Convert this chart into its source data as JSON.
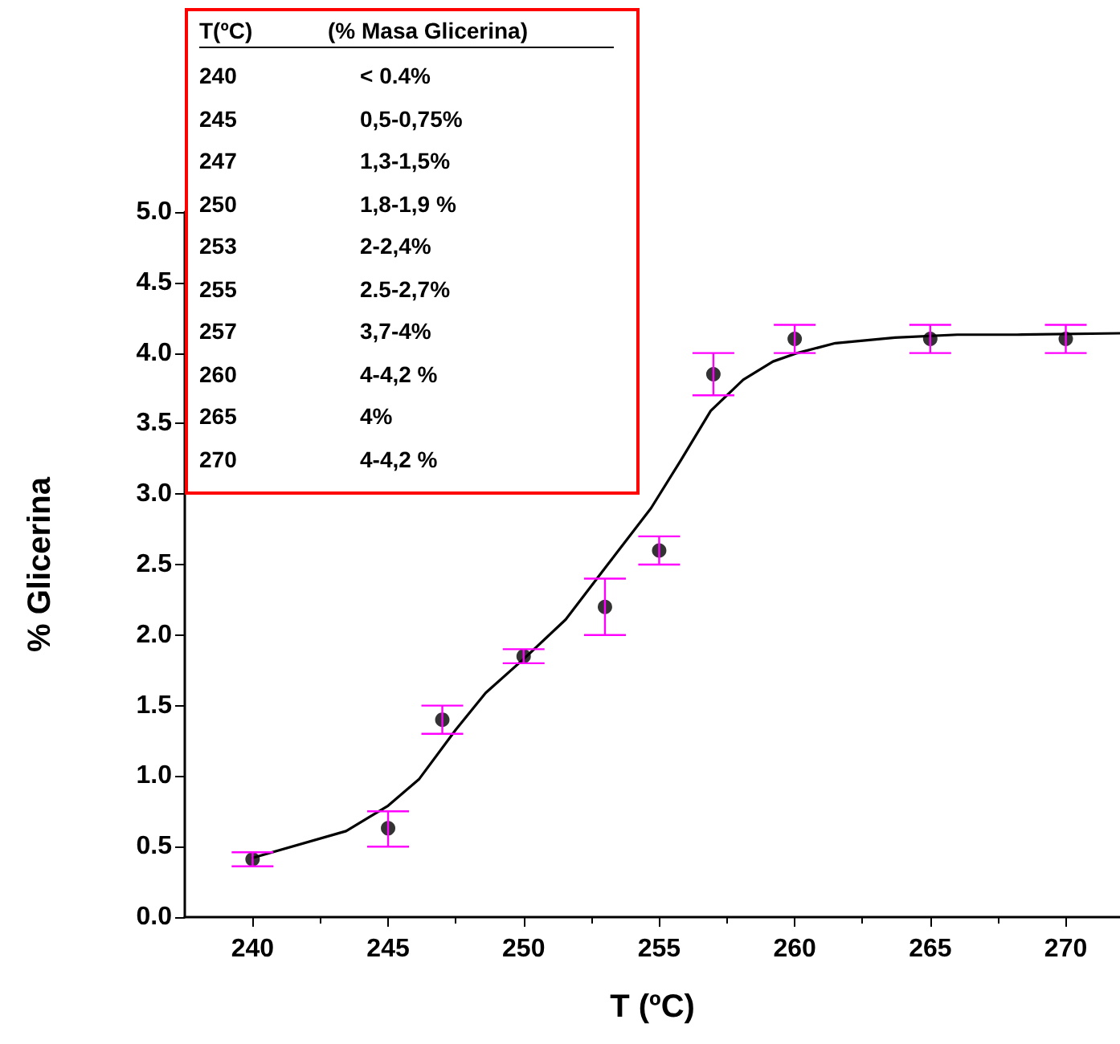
{
  "chart_data": {
    "type": "scatter",
    "xlabel": "T (ºC)",
    "ylabel": "% Glicerina",
    "xlim": [
      237.5,
      272
    ],
    "xticks": [
      240,
      245,
      250,
      255,
      260,
      265,
      270
    ],
    "ylim": [
      0,
      5
    ],
    "yticks": [
      {
        "value": 0,
        "label": "0.0"
      },
      0.5,
      {
        "value": 1,
        "label": "1.0"
      },
      1.5,
      {
        "value": 2,
        "label": "2.0"
      },
      2.5,
      {
        "value": 3,
        "label": "3.0"
      },
      3.5,
      {
        "value": 4,
        "label": "4.0"
      },
      4.5,
      {
        "value": 5,
        "label": "5.0"
      }
    ],
    "grid": false,
    "annotations": [
      "T(ºC)",
      "(% Masa Glicerina)",
      "240",
      "< 0.4%",
      "245",
      "0,5-0,75%",
      "247",
      "1,3-1,5%",
      "250",
      "1,8-1,9 %",
      "253",
      "2-2,4%",
      "255",
      "2.5-2,7%",
      "257",
      "3,7-4%",
      "260",
      "4-4,2 %",
      "265",
      "4%",
      "270",
      "4-4,2 %"
    ],
    "series": [
      {
        "color": "#000000",
        "marker": "circle",
        "x": [
          240,
          245,
          247,
          250,
          253,
          255,
          257,
          260,
          265,
          270
        ],
        "values": [
          0.41,
          0.63,
          1.4,
          1.85,
          2.2,
          2.6,
          3.85,
          4.1,
          4.1,
          4.1
        ],
        "errors": [
          [
            0.36,
            0.46
          ],
          [
            0.5,
            0.75
          ],
          [
            1.3,
            1.5
          ],
          [
            1.8,
            1.9
          ],
          [
            2.0,
            2.4
          ],
          [
            2.5,
            2.7
          ],
          [
            3.7,
            4.0
          ],
          [
            4.0,
            4.2
          ],
          [
            4.0,
            4.2
          ],
          [
            4.0,
            4.2
          ]
        ]
      },
      {
        "type": "line",
        "color": "#000000",
        "marker": "none",
        "line_style": "solid",
        "x": [
          240,
          243.45,
          245,
          246.15,
          247.5,
          248.6,
          250,
          251.55,
          253.1,
          254.7,
          255.8,
          256.9,
          258.1,
          259.2,
          260.1,
          261.5,
          263.7,
          266,
          268.2,
          272
        ],
        "values": [
          0.42,
          0.61,
          0.79,
          0.98,
          1.33,
          1.59,
          1.83,
          2.11,
          2.5,
          2.9,
          3.24,
          3.59,
          3.81,
          3.94,
          4.0,
          4.07,
          4.11,
          4.13,
          4.13,
          4.14
        ]
      }
    ]
  }
}
